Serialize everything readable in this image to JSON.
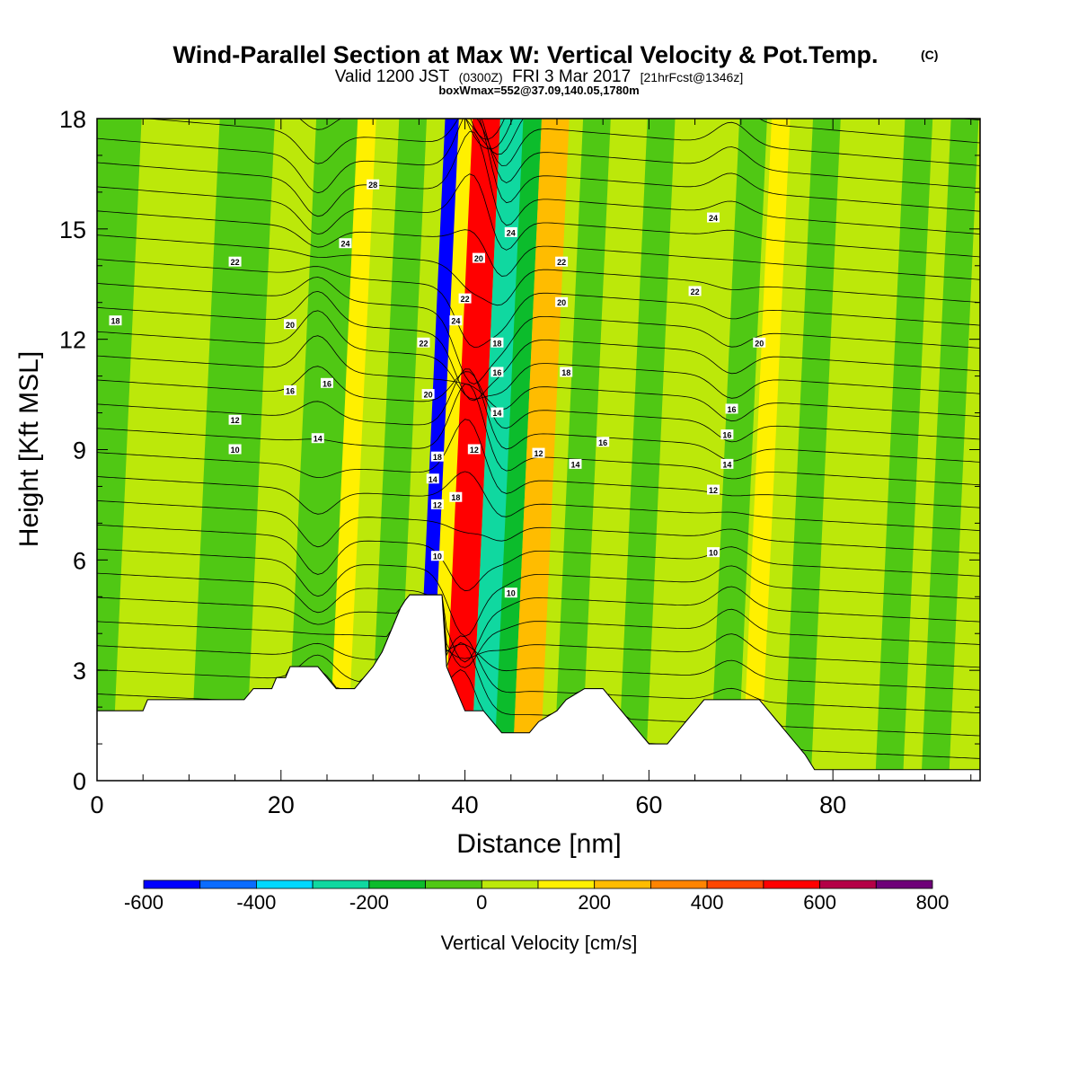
{
  "figure": {
    "title": "Wind-Parallel Section at Max W: Vertical Velocity & Pot.Temp.",
    "copyright_mark": "(C)",
    "subtitle_valid": "Valid 1200 JST",
    "subtitle_zulu": "(0300Z)",
    "subtitle_date": "FRI 3 Mar 2017",
    "subtitle_fcst": "[21hrFcst@1346z]",
    "subtitle2": "boxWmax=552@37.09,140.05,1780m"
  },
  "chart_data": {
    "type": "heatmap",
    "xlabel": "Distance [nm]",
    "ylabel": "Height [Kft MSL]",
    "xlim": [
      0,
      96
    ],
    "ylim": [
      0,
      18
    ],
    "xticks": [
      "0",
      "20",
      "40",
      "60",
      "80"
    ],
    "yticks": [
      "0",
      "3",
      "6",
      "9",
      "12",
      "15",
      "18"
    ],
    "colorbar": {
      "label": "Vertical Velocity [cm/s]",
      "tick_labels": [
        "-600",
        "-400",
        "-200",
        "0",
        "200",
        "400",
        "600",
        "800"
      ],
      "levels": [
        -600,
        -500,
        -400,
        -300,
        -200,
        -100,
        0,
        100,
        200,
        300,
        400,
        500,
        600,
        700,
        800
      ],
      "colors": [
        "#0000ff",
        "#0a6cff",
        "#00d8ff",
        "#10d8a0",
        "#0cbc2c",
        "#50c814",
        "#bce80a",
        "#fff000",
        "#ffbc00",
        "#ff8400",
        "#ff4600",
        "#ff0000",
        "#b40046",
        "#6e0078"
      ]
    },
    "vertical_velocity_bands": [
      {
        "x_center": 0,
        "value": -50,
        "width": 5
      },
      {
        "x_center": 14,
        "value": -50,
        "width": 6
      },
      {
        "x_center": 23,
        "value": -100,
        "width": 3
      },
      {
        "x_center": 25,
        "value": -50,
        "width": 3
      },
      {
        "x_center": 27,
        "value": 150,
        "width": 2
      },
      {
        "x_center": 32,
        "value": -100,
        "width": 3
      },
      {
        "x_center": 36.5,
        "value": -550,
        "width": 2
      },
      {
        "x_center": 38,
        "value": 150,
        "width": 2
      },
      {
        "x_center": 40,
        "value": 552,
        "width": 3
      },
      {
        "x_center": 43,
        "value": -300,
        "width": 3
      },
      {
        "x_center": 45,
        "value": -150,
        "width": 2
      },
      {
        "x_center": 47.5,
        "value": 250,
        "width": 3
      },
      {
        "x_center": 52,
        "value": -100,
        "width": 3
      },
      {
        "x_center": 56,
        "value": 50,
        "width": 3
      },
      {
        "x_center": 59,
        "value": -100,
        "width": 3
      },
      {
        "x_center": 63,
        "value": 50,
        "width": 2
      },
      {
        "x_center": 69,
        "value": -100,
        "width": 3
      },
      {
        "x_center": 72,
        "value": 150,
        "width": 2
      },
      {
        "x_center": 77,
        "value": -50,
        "width": 3
      },
      {
        "x_center": 87,
        "value": -100,
        "width": 3
      },
      {
        "x_center": 92,
        "value": -50,
        "width": 3
      }
    ],
    "terrain": [
      [
        0,
        1.9
      ],
      [
        5,
        1.9
      ],
      [
        5.5,
        2.2
      ],
      [
        16,
        2.2
      ],
      [
        17,
        2.5
      ],
      [
        19,
        2.5
      ],
      [
        19.5,
        2.8
      ],
      [
        20.5,
        2.8
      ],
      [
        21,
        3.1
      ],
      [
        24,
        3.1
      ],
      [
        25,
        2.8
      ],
      [
        26,
        2.5
      ],
      [
        28,
        2.5
      ],
      [
        29,
        2.8
      ],
      [
        30,
        3.1
      ],
      [
        31,
        3.5
      ],
      [
        31.5,
        3.8
      ],
      [
        32,
        4.1
      ],
      [
        32.5,
        4.4
      ],
      [
        33,
        4.7
      ],
      [
        33.5,
        4.9
      ],
      [
        34,
        5.05
      ],
      [
        37.5,
        5.05
      ],
      [
        38,
        3.1
      ],
      [
        39,
        2.5
      ],
      [
        40,
        1.9
      ],
      [
        42,
        1.9
      ],
      [
        43,
        1.6
      ],
      [
        44,
        1.3
      ],
      [
        47,
        1.3
      ],
      [
        48,
        1.6
      ],
      [
        50,
        1.9
      ],
      [
        51,
        2.2
      ],
      [
        53,
        2.5
      ],
      [
        55,
        2.5
      ],
      [
        56,
        2.2
      ],
      [
        57,
        1.9
      ],
      [
        58,
        1.6
      ],
      [
        59,
        1.3
      ],
      [
        60,
        1.0
      ],
      [
        62,
        1.0
      ],
      [
        63,
        1.3
      ],
      [
        64,
        1.6
      ],
      [
        65,
        1.9
      ],
      [
        66,
        2.2
      ],
      [
        67,
        2.2
      ],
      [
        72,
        2.2
      ],
      [
        73,
        1.9
      ],
      [
        74,
        1.6
      ],
      [
        75,
        1.3
      ],
      [
        76,
        1.0
      ],
      [
        77,
        0.7
      ],
      [
        78,
        0.3
      ],
      [
        80,
        0.3
      ],
      [
        96,
        0.3
      ]
    ],
    "theta_contour_labels": [
      {
        "text": "28",
        "x": 30,
        "y": 16.2
      },
      {
        "text": "24",
        "x": 27,
        "y": 14.6
      },
      {
        "text": "22",
        "x": 15,
        "y": 14.1
      },
      {
        "text": "18",
        "x": 2,
        "y": 12.5
      },
      {
        "text": "20",
        "x": 21,
        "y": 12.4
      },
      {
        "text": "16",
        "x": 21,
        "y": 10.6
      },
      {
        "text": "16",
        "x": 25,
        "y": 10.8
      },
      {
        "text": "12",
        "x": 15,
        "y": 9.8
      },
      {
        "text": "14",
        "x": 24,
        "y": 9.3
      },
      {
        "text": "10",
        "x": 15,
        "y": 9.0
      },
      {
        "text": "22",
        "x": 35.5,
        "y": 11.9
      },
      {
        "text": "20",
        "x": 36,
        "y": 10.5
      },
      {
        "text": "18",
        "x": 37,
        "y": 8.8
      },
      {
        "text": "14",
        "x": 36.5,
        "y": 8.2
      },
      {
        "text": "12",
        "x": 37,
        "y": 7.5
      },
      {
        "text": "10",
        "x": 37,
        "y": 6.1
      },
      {
        "text": "18",
        "x": 39,
        "y": 7.7
      },
      {
        "text": "12",
        "x": 41,
        "y": 9.0
      },
      {
        "text": "24",
        "x": 39,
        "y": 12.5
      },
      {
        "text": "22",
        "x": 40,
        "y": 13.1
      },
      {
        "text": "20",
        "x": 41.5,
        "y": 14.2
      },
      {
        "text": "24",
        "x": 45,
        "y": 14.9
      },
      {
        "text": "18",
        "x": 43.5,
        "y": 11.9
      },
      {
        "text": "16",
        "x": 43.5,
        "y": 11.1
      },
      {
        "text": "14",
        "x": 43.5,
        "y": 10.0
      },
      {
        "text": "10",
        "x": 45,
        "y": 5.1
      },
      {
        "text": "12",
        "x": 48,
        "y": 8.9
      },
      {
        "text": "22",
        "x": 50.5,
        "y": 14.1
      },
      {
        "text": "20",
        "x": 50.5,
        "y": 13.0
      },
      {
        "text": "18",
        "x": 51,
        "y": 11.1
      },
      {
        "text": "16",
        "x": 55,
        "y": 9.2
      },
      {
        "text": "14",
        "x": 52,
        "y": 8.6
      },
      {
        "text": "24",
        "x": 67,
        "y": 15.3
      },
      {
        "text": "22",
        "x": 65,
        "y": 13.3
      },
      {
        "text": "20",
        "x": 72,
        "y": 11.9
      },
      {
        "text": "16",
        "x": 69,
        "y": 10.1
      },
      {
        "text": "16",
        "x": 68.5,
        "y": 9.4
      },
      {
        "text": "14",
        "x": 68.5,
        "y": 8.6
      },
      {
        "text": "12",
        "x": 67,
        "y": 7.9
      },
      {
        "text": "10",
        "x": 67,
        "y": 6.2
      }
    ]
  }
}
